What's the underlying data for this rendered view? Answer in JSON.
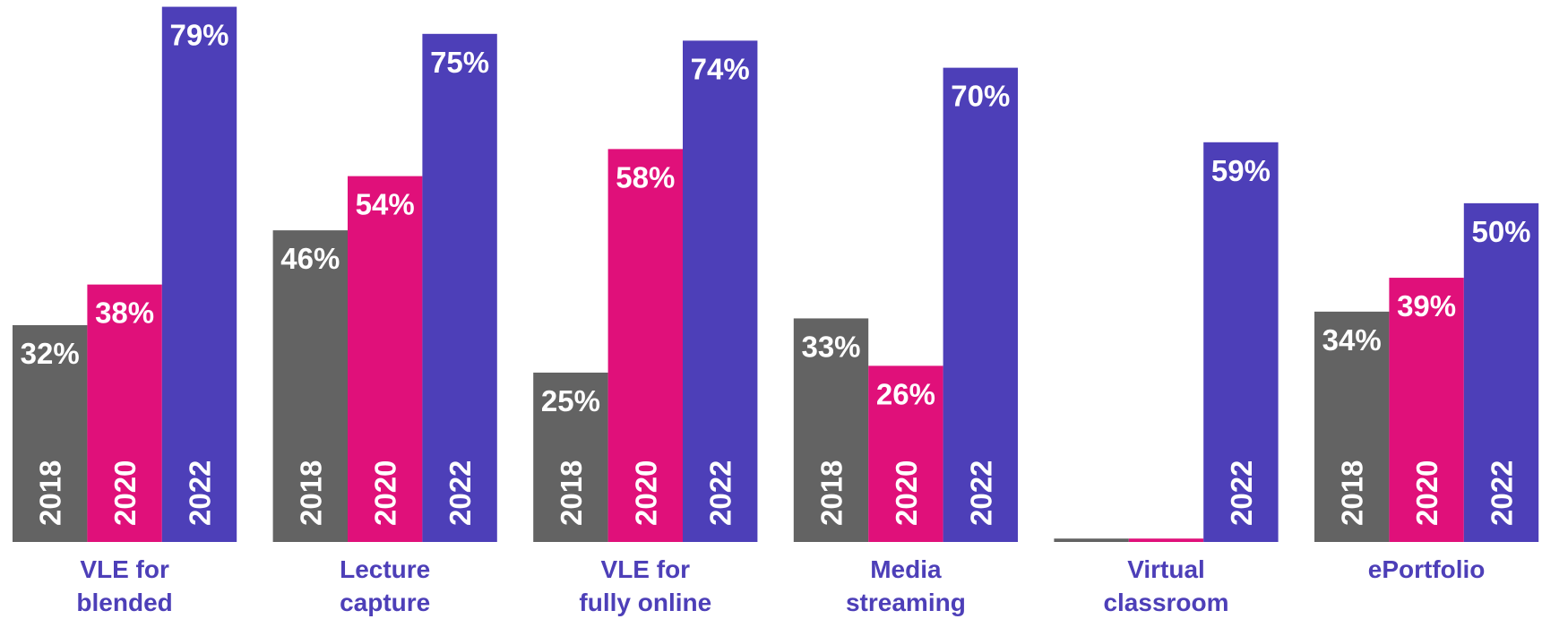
{
  "chart_data": {
    "type": "bar",
    "categories": [
      [
        "VLE for",
        "blended"
      ],
      [
        "Lecture",
        "capture"
      ],
      [
        "VLE for",
        "fully online"
      ],
      [
        "Media",
        "streaming"
      ],
      [
        "Virtual",
        "classroom"
      ],
      [
        "ePortfolio"
      ]
    ],
    "series": [
      {
        "name": "2018",
        "color": "#636363",
        "values": [
          32,
          46,
          25,
          33,
          0.5,
          34
        ],
        "value_labels": [
          "32%",
          "46%",
          "25%",
          "33%",
          null,
          "34%"
        ]
      },
      {
        "name": "2020",
        "color": "#e0107a",
        "values": [
          38,
          54,
          58,
          26,
          0.5,
          39
        ],
        "value_labels": [
          "38%",
          "54%",
          "58%",
          "26%",
          null,
          "39%"
        ]
      },
      {
        "name": "2022",
        "color": "#4d3fb8",
        "values": [
          79,
          75,
          74,
          70,
          59,
          50
        ],
        "value_labels": [
          "79%",
          "75%",
          "74%",
          "70%",
          "59%",
          "50%"
        ]
      }
    ],
    "ylim": [
      0,
      80
    ]
  }
}
